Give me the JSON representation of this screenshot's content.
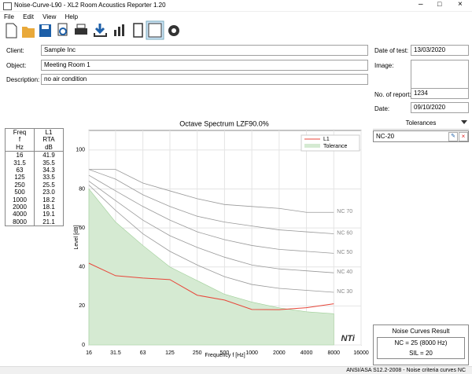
{
  "window": {
    "title": "Noise-Curve-L90 - XL2 Room Acoustics Reporter 1.20",
    "menu": [
      "File",
      "Edit",
      "View",
      "Help"
    ]
  },
  "form": {
    "client": {
      "label": "Client:",
      "value": "Sample Inc"
    },
    "object": {
      "label": "Object:",
      "value": "Meeting Room 1"
    },
    "description": {
      "label": "Description:",
      "value": "no air condition"
    },
    "date_of_test": {
      "label": "Date of test:",
      "value": "13/03/2020"
    },
    "image": {
      "label": "Image:"
    },
    "report_no": {
      "label": "No. of report:",
      "value": "1234"
    },
    "date": {
      "label": "Date:",
      "value": "09/10/2020"
    }
  },
  "table": {
    "header": [
      [
        "Freq",
        "f",
        "Hz"
      ],
      [
        "L1",
        "RTA",
        "dB"
      ]
    ],
    "rows": [
      [
        "16",
        "41.9"
      ],
      [
        "31.5",
        "35.5"
      ],
      [
        "63",
        "34.3"
      ],
      [
        "125",
        "33.5"
      ],
      [
        "250",
        "25.5"
      ],
      [
        "500",
        "23.0"
      ],
      [
        "1000",
        "18.2"
      ],
      [
        "2000",
        "18.1"
      ],
      [
        "4000",
        "19.1"
      ],
      [
        "8000",
        "21.1"
      ]
    ]
  },
  "chart": {
    "type": "line",
    "title": "Octave Spectrum LZF90.0%",
    "x_label": "Frequency f [Hz]",
    "y_label": "Level [dB]",
    "x": [
      16,
      31.5,
      63,
      125,
      250,
      500,
      1000,
      2000,
      4000,
      8000
    ],
    "xlim": [
      16,
      16000
    ],
    "xticks": [
      16,
      31.5,
      63,
      125,
      250,
      500,
      1000,
      2000,
      4000,
      8000,
      16000
    ],
    "x_log": true,
    "ylim": [
      0,
      110
    ],
    "yticks": [
      0,
      20,
      40,
      60,
      80,
      100
    ],
    "grid": true,
    "legend": "top-right",
    "series": [
      {
        "name": "L1",
        "color": "#e8463a",
        "values": [
          41.9,
          35.5,
          34.3,
          33.5,
          25.5,
          23.0,
          18.2,
          18.1,
          19.1,
          21.1
        ]
      }
    ],
    "tolerance": {
      "name": "Tolerance",
      "color": "#d5ead2",
      "values": [
        80,
        63,
        51,
        40,
        33,
        26,
        22,
        19,
        17,
        16
      ]
    },
    "nc_curves": [
      {
        "label": "NC 70",
        "values": [
          90,
          90,
          83,
          79,
          75,
          72,
          71,
          70,
          68,
          68
        ]
      },
      {
        "label": "NC 60",
        "values": [
          90,
          85,
          77,
          71,
          66,
          63,
          61,
          59,
          58,
          57
        ]
      },
      {
        "label": "NC 50",
        "values": [
          87,
          79,
          71,
          64,
          58,
          54,
          51,
          49,
          48,
          47
        ]
      },
      {
        "label": "NC 40",
        "values": [
          84,
          74,
          64,
          56,
          50,
          45,
          41,
          39,
          38,
          37
        ]
      },
      {
        "label": "NC 30",
        "values": [
          82,
          69,
          57,
          48,
          41,
          35,
          31,
          29,
          28,
          27
        ]
      }
    ],
    "nc_color": "#999999",
    "logo": "NTi"
  },
  "tolerances": {
    "title": "Tolerances",
    "items": [
      "NC-20"
    ]
  },
  "result": {
    "title": "Noise Curves Result",
    "lines": [
      "NC = 25 (8000 Hz)",
      "SIL = 20"
    ]
  },
  "status": "ANSI/ASA S12.2-2008 - Noise criteria curves NC"
}
